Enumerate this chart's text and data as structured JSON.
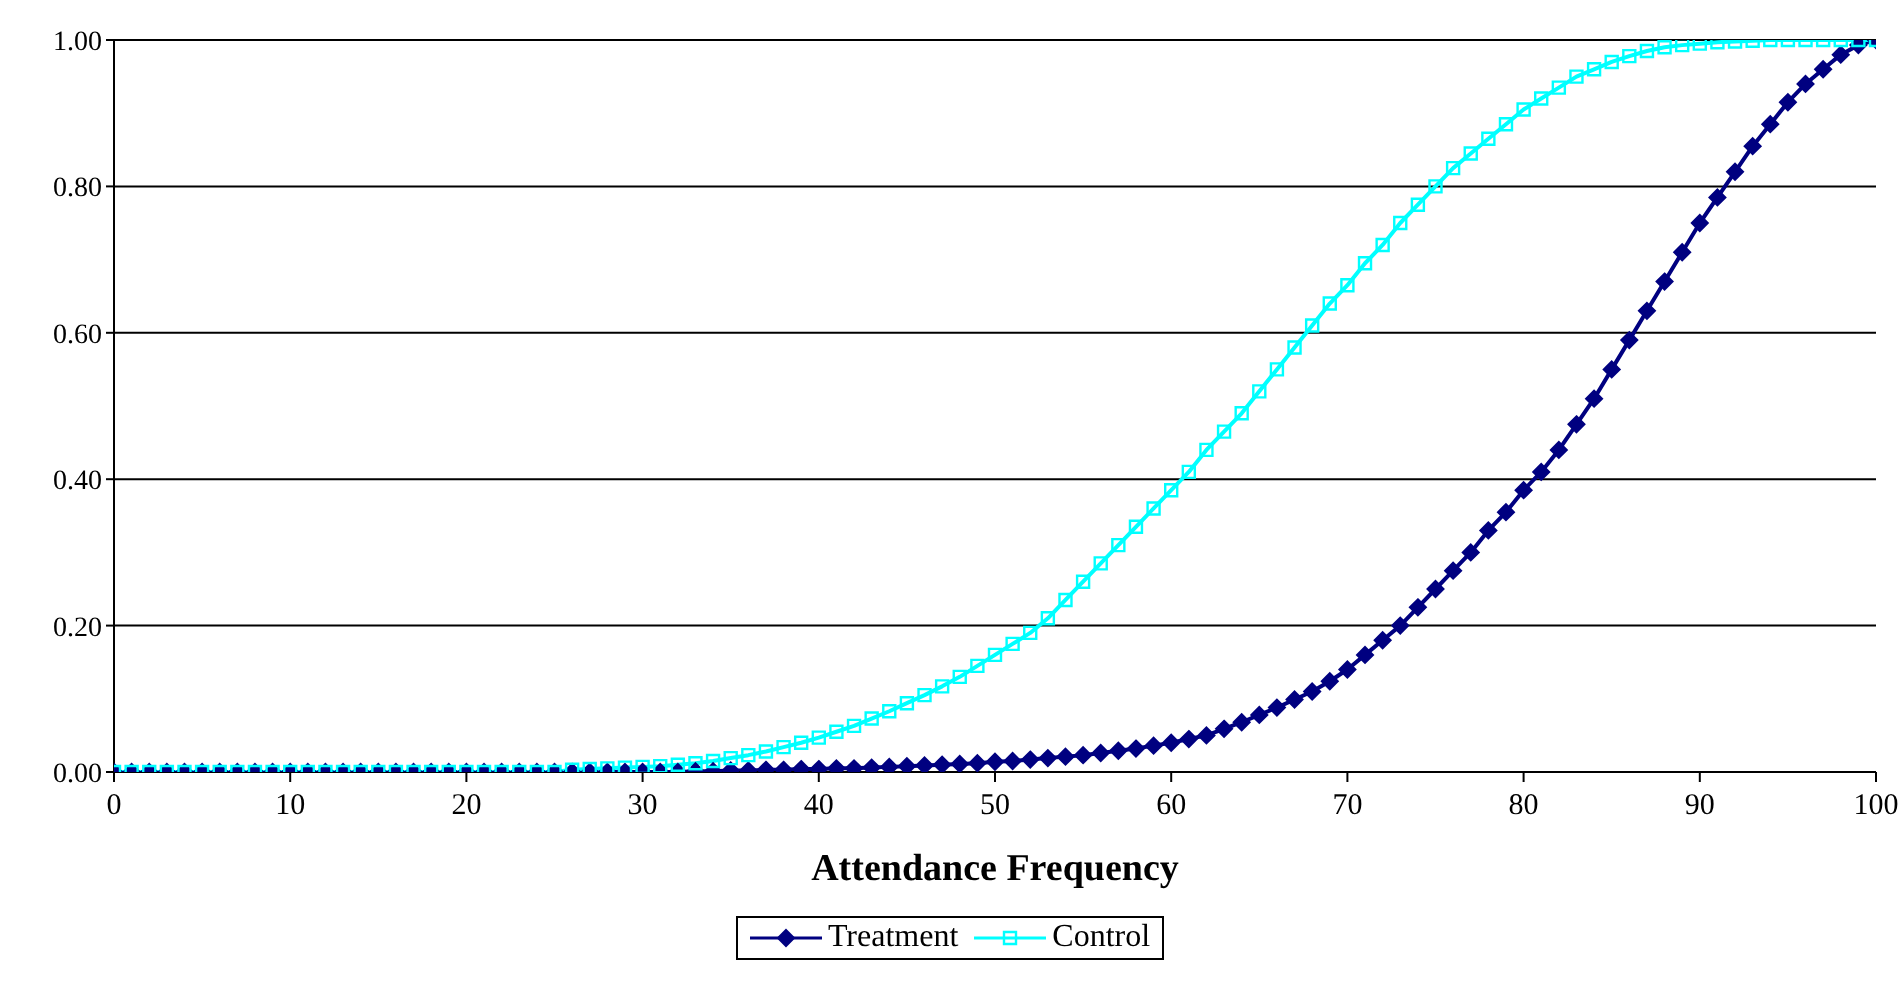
{
  "chart_data": {
    "type": "line",
    "xlabel": "Attendance Frequency",
    "x": [
      0,
      1,
      2,
      3,
      4,
      5,
      6,
      7,
      8,
      9,
      10,
      11,
      12,
      13,
      14,
      15,
      16,
      17,
      18,
      19,
      20,
      21,
      22,
      23,
      24,
      25,
      26,
      27,
      28,
      29,
      30,
      31,
      32,
      33,
      34,
      35,
      36,
      37,
      38,
      39,
      40,
      41,
      42,
      43,
      44,
      45,
      46,
      47,
      48,
      49,
      50,
      51,
      52,
      53,
      54,
      55,
      56,
      57,
      58,
      59,
      60,
      61,
      62,
      63,
      64,
      65,
      66,
      67,
      68,
      69,
      70,
      71,
      72,
      73,
      74,
      75,
      76,
      77,
      78,
      79,
      80,
      81,
      82,
      83,
      84,
      85,
      86,
      87,
      88,
      89,
      90,
      91,
      92,
      93,
      94,
      95,
      96,
      97,
      98,
      99,
      100
    ],
    "series": [
      {
        "name": "Treatment",
        "color": "#000080",
        "marker": "diamond",
        "values": [
          0,
          0,
          0,
          0,
          0,
          0,
          0,
          0,
          0,
          0,
          0,
          0,
          0,
          0,
          0,
          0,
          0,
          0,
          0,
          0,
          0,
          0,
          0,
          0,
          0,
          0,
          0,
          0,
          0,
          0,
          0,
          0,
          0,
          0.001,
          0.001,
          0.002,
          0.002,
          0.003,
          0.003,
          0.004,
          0.004,
          0.005,
          0.005,
          0.006,
          0.007,
          0.008,
          0.009,
          0.01,
          0.011,
          0.012,
          0.014,
          0.015,
          0.017,
          0.019,
          0.021,
          0.023,
          0.026,
          0.029,
          0.032,
          0.036,
          0.04,
          0.045,
          0.05,
          0.059,
          0.068,
          0.078,
          0.088,
          0.099,
          0.11,
          0.124,
          0.14,
          0.16,
          0.18,
          0.2,
          0.225,
          0.25,
          0.275,
          0.3,
          0.33,
          0.355,
          0.385,
          0.41,
          0.44,
          0.475,
          0.51,
          0.55,
          0.59,
          0.63,
          0.67,
          0.71,
          0.75,
          0.785,
          0.82,
          0.855,
          0.885,
          0.915,
          0.94,
          0.96,
          0.98,
          0.993,
          1
        ]
      },
      {
        "name": "Control",
        "color": "#00ffff",
        "marker": "square",
        "values": [
          0,
          0,
          0,
          0,
          0,
          0,
          0,
          0,
          0,
          0,
          0,
          0,
          0,
          0,
          0,
          0,
          0,
          0,
          0,
          0,
          0,
          0,
          0,
          0,
          0,
          0,
          0.003,
          0.004,
          0.005,
          0.006,
          0.007,
          0.008,
          0.01,
          0.012,
          0.015,
          0.019,
          0.023,
          0.028,
          0.034,
          0.04,
          0.047,
          0.055,
          0.063,
          0.073,
          0.083,
          0.094,
          0.105,
          0.117,
          0.13,
          0.145,
          0.16,
          0.175,
          0.19,
          0.21,
          0.235,
          0.26,
          0.285,
          0.31,
          0.335,
          0.36,
          0.385,
          0.41,
          0.44,
          0.465,
          0.49,
          0.52,
          0.55,
          0.58,
          0.61,
          0.64,
          0.665,
          0.695,
          0.72,
          0.75,
          0.775,
          0.8,
          0.825,
          0.845,
          0.865,
          0.885,
          0.905,
          0.92,
          0.935,
          0.95,
          0.96,
          0.97,
          0.978,
          0.985,
          0.99,
          0.993,
          0.995,
          0.997,
          0.998,
          0.999,
          1,
          1,
          1,
          1,
          1,
          1,
          1
        ]
      }
    ],
    "xlim": [
      0,
      100
    ],
    "xticks": [
      0,
      10,
      20,
      30,
      40,
      50,
      60,
      70,
      80,
      90,
      100
    ],
    "ylim": [
      0,
      1
    ],
    "yticks": [
      {
        "value": 0,
        "label": "0.00"
      },
      {
        "value": 0.2,
        "label": "0.20"
      },
      {
        "value": 0.4,
        "label": "0.40"
      },
      {
        "value": 0.6,
        "label": "0.60"
      },
      {
        "value": 0.8,
        "label": "0.80"
      },
      {
        "value": 1,
        "label": "1.00"
      }
    ],
    "grid": "y",
    "legend": "bottom",
    "line_style": "solid"
  }
}
